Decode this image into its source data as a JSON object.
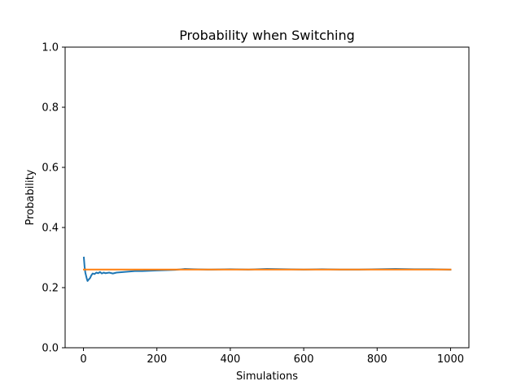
{
  "chart_data": {
    "type": "line",
    "title": "Probability when Switching",
    "xlabel": "Simulations",
    "ylabel": "Probability",
    "xlim": [
      -50,
      1050
    ],
    "ylim": [
      0.0,
      1.0
    ],
    "xticks": [
      0,
      200,
      400,
      600,
      800,
      1000
    ],
    "xtick_labels": [
      "0",
      "200",
      "400",
      "600",
      "800",
      "1000"
    ],
    "yticks": [
      0.0,
      0.2,
      0.4,
      0.6,
      0.8,
      1.0
    ],
    "ytick_labels": [
      "0.0",
      "0.2",
      "0.4",
      "0.6",
      "0.8",
      "1.0"
    ],
    "grid": false,
    "series": [
      {
        "color": "#1f77b4",
        "x": [
          1,
          3,
          5,
          7,
          9,
          11,
          13,
          15,
          18,
          21,
          25,
          30,
          35,
          40,
          45,
          50,
          55,
          60,
          70,
          80,
          90,
          100,
          120,
          140,
          160,
          180,
          200,
          225,
          250,
          275,
          300,
          350,
          400,
          450,
          500,
          550,
          600,
          650,
          700,
          750,
          800,
          850,
          900,
          950,
          1000
        ],
        "y": [
          0.3,
          0.27,
          0.25,
          0.24,
          0.23,
          0.222,
          0.225,
          0.228,
          0.232,
          0.24,
          0.247,
          0.245,
          0.25,
          0.248,
          0.252,
          0.247,
          0.25,
          0.248,
          0.25,
          0.247,
          0.25,
          0.251,
          0.253,
          0.255,
          0.255,
          0.256,
          0.257,
          0.258,
          0.259,
          0.262,
          0.261,
          0.26,
          0.261,
          0.26,
          0.262,
          0.261,
          0.26,
          0.261,
          0.26,
          0.26,
          0.261,
          0.262,
          0.261,
          0.261,
          0.26
        ]
      },
      {
        "color": "#ff7f0e",
        "x": [
          1,
          1000
        ],
        "y": [
          0.26,
          0.26
        ]
      }
    ]
  }
}
